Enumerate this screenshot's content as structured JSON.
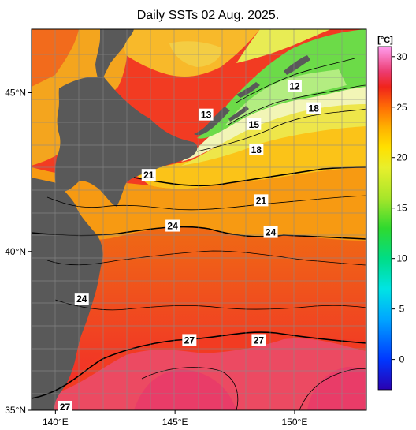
{
  "title": "Daily SSTs 02 Aug. 2025.",
  "map": {
    "lon_range": [
      139,
      153
    ],
    "lat_range": [
      35,
      47
    ],
    "lon_ticks": [
      {
        "value": 140,
        "label": "140°E"
      },
      {
        "value": 145,
        "label": "145°E"
      },
      {
        "value": 150,
        "label": "150°E"
      }
    ],
    "lat_ticks": [
      {
        "value": 45,
        "label": "45°N"
      },
      {
        "value": 40,
        "label": "40°N"
      },
      {
        "value": 35,
        "label": "35°N"
      }
    ],
    "grid": true,
    "land_color": "#595959"
  },
  "contour_labels": [
    {
      "text": "12",
      "lon": 150.0,
      "lat": 45.2
    },
    {
      "text": "13",
      "lon": 146.3,
      "lat": 44.3
    },
    {
      "text": "18",
      "lon": 150.8,
      "lat": 44.5
    },
    {
      "text": "15",
      "lon": 148.3,
      "lat": 44.0
    },
    {
      "text": "18",
      "lon": 148.4,
      "lat": 43.2
    },
    {
      "text": "21",
      "lon": 143.9,
      "lat": 42.4
    },
    {
      "text": "21",
      "lon": 148.6,
      "lat": 41.6
    },
    {
      "text": "24",
      "lon": 144.9,
      "lat": 40.8
    },
    {
      "text": "24",
      "lon": 149.0,
      "lat": 40.6
    },
    {
      "text": "24",
      "lon": 141.1,
      "lat": 38.5
    },
    {
      "text": "27",
      "lon": 145.6,
      "lat": 37.2
    },
    {
      "text": "27",
      "lon": 148.5,
      "lat": 37.2
    },
    {
      "text": "27",
      "lon": 140.4,
      "lat": 35.1
    }
  ],
  "colorbar": {
    "unit": "[°C]",
    "min": -3,
    "max": 31,
    "ticks": [
      0,
      5,
      10,
      15,
      20,
      25,
      30
    ],
    "colors": [
      {
        "t": -3,
        "c": "#2a00b0"
      },
      {
        "t": 0,
        "c": "#0037ff"
      },
      {
        "t": 4,
        "c": "#00a6ff"
      },
      {
        "t": 7,
        "c": "#00e4e4"
      },
      {
        "t": 10,
        "c": "#00dd86"
      },
      {
        "t": 13,
        "c": "#2fd92f"
      },
      {
        "t": 16,
        "c": "#a8e62a"
      },
      {
        "t": 19,
        "c": "#e8ef2c"
      },
      {
        "t": 21,
        "c": "#ffe000"
      },
      {
        "t": 23,
        "c": "#ffb100"
      },
      {
        "t": 25,
        "c": "#ff6d05"
      },
      {
        "t": 27,
        "c": "#f0241b"
      },
      {
        "t": 28.5,
        "c": "#ec3b70"
      },
      {
        "t": 31,
        "c": "#ff9ef0"
      }
    ]
  }
}
